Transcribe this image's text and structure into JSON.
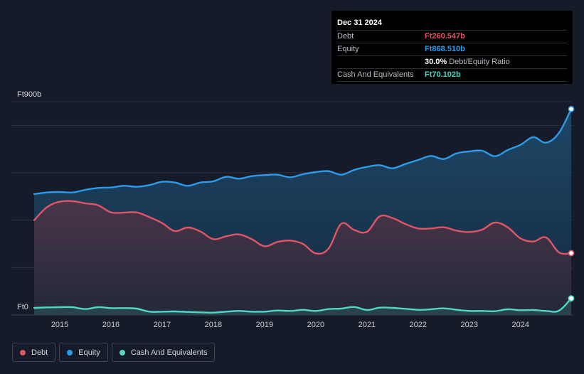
{
  "chart_data": {
    "type": "area",
    "y_top_label": "Ft900b",
    "y_bottom_label": "Ft0",
    "ylim": [
      0,
      900
    ],
    "xlim": [
      2014.5,
      2025.0
    ],
    "x_ticks": [
      "2015",
      "2016",
      "2017",
      "2018",
      "2019",
      "2020",
      "2021",
      "2022",
      "2023",
      "2024"
    ],
    "x_tick_values": [
      2015,
      2016,
      2017,
      2018,
      2019,
      2020,
      2021,
      2022,
      2023,
      2024
    ],
    "y_grid": [
      0,
      200,
      400,
      600,
      800,
      900
    ],
    "grid": true,
    "legend_position": "bottom-left",
    "series": [
      {
        "name": "Equity",
        "color": "#2d9be8",
        "points": [
          [
            2014.5,
            510
          ],
          [
            2014.75,
            517
          ],
          [
            2015.0,
            519
          ],
          [
            2015.25,
            517
          ],
          [
            2015.5,
            528
          ],
          [
            2015.75,
            536
          ],
          [
            2016.0,
            538
          ],
          [
            2016.25,
            545
          ],
          [
            2016.5,
            541
          ],
          [
            2016.75,
            548
          ],
          [
            2017.0,
            562
          ],
          [
            2017.25,
            559
          ],
          [
            2017.5,
            545
          ],
          [
            2017.75,
            559
          ],
          [
            2018.0,
            564
          ],
          [
            2018.25,
            583
          ],
          [
            2018.5,
            575
          ],
          [
            2018.75,
            586
          ],
          [
            2019.0,
            590
          ],
          [
            2019.25,
            592
          ],
          [
            2019.5,
            581
          ],
          [
            2019.75,
            594
          ],
          [
            2020.0,
            603
          ],
          [
            2020.25,
            607
          ],
          [
            2020.5,
            592
          ],
          [
            2020.75,
            612
          ],
          [
            2021.0,
            625
          ],
          [
            2021.25,
            632
          ],
          [
            2021.5,
            619
          ],
          [
            2021.75,
            637
          ],
          [
            2022.0,
            654
          ],
          [
            2022.25,
            671
          ],
          [
            2022.5,
            658
          ],
          [
            2022.75,
            682
          ],
          [
            2023.0,
            690
          ],
          [
            2023.25,
            693
          ],
          [
            2023.5,
            670
          ],
          [
            2023.75,
            696
          ],
          [
            2024.0,
            718
          ],
          [
            2024.25,
            750
          ],
          [
            2024.5,
            727
          ],
          [
            2024.75,
            768
          ],
          [
            2024.99,
            869
          ]
        ]
      },
      {
        "name": "Debt",
        "color": "#e05566",
        "points": [
          [
            2014.5,
            400
          ],
          [
            2014.75,
            455
          ],
          [
            2015.0,
            478
          ],
          [
            2015.25,
            480
          ],
          [
            2015.5,
            471
          ],
          [
            2015.75,
            463
          ],
          [
            2016.0,
            433
          ],
          [
            2016.25,
            432
          ],
          [
            2016.5,
            433
          ],
          [
            2016.75,
            413
          ],
          [
            2017.0,
            388
          ],
          [
            2017.25,
            354
          ],
          [
            2017.5,
            369
          ],
          [
            2017.75,
            352
          ],
          [
            2018.0,
            320
          ],
          [
            2018.25,
            332
          ],
          [
            2018.5,
            340
          ],
          [
            2018.75,
            320
          ],
          [
            2019.0,
            290
          ],
          [
            2019.25,
            308
          ],
          [
            2019.5,
            314
          ],
          [
            2019.75,
            300
          ],
          [
            2020.0,
            260
          ],
          [
            2020.25,
            280
          ],
          [
            2020.5,
            385
          ],
          [
            2020.75,
            359
          ],
          [
            2021.0,
            351
          ],
          [
            2021.25,
            416
          ],
          [
            2021.5,
            409
          ],
          [
            2021.75,
            384
          ],
          [
            2022.0,
            365
          ],
          [
            2022.25,
            365
          ],
          [
            2022.5,
            370
          ],
          [
            2022.75,
            356
          ],
          [
            2023.0,
            350
          ],
          [
            2023.25,
            360
          ],
          [
            2023.5,
            390
          ],
          [
            2023.75,
            370
          ],
          [
            2024.0,
            323
          ],
          [
            2024.25,
            310
          ],
          [
            2024.5,
            327
          ],
          [
            2024.75,
            264
          ],
          [
            2024.99,
            261
          ]
        ]
      },
      {
        "name": "Cash And Equivalents",
        "color": "#4fd8c4",
        "points": [
          [
            2014.5,
            30
          ],
          [
            2014.75,
            32
          ],
          [
            2015.0,
            33
          ],
          [
            2015.25,
            33
          ],
          [
            2015.5,
            25
          ],
          [
            2015.75,
            33
          ],
          [
            2016.0,
            29
          ],
          [
            2016.25,
            29
          ],
          [
            2016.5,
            27
          ],
          [
            2016.75,
            14
          ],
          [
            2017.0,
            14
          ],
          [
            2017.25,
            15
          ],
          [
            2017.5,
            13
          ],
          [
            2017.75,
            11
          ],
          [
            2018.0,
            10
          ],
          [
            2018.25,
            14
          ],
          [
            2018.5,
            17
          ],
          [
            2018.75,
            14
          ],
          [
            2019.0,
            14
          ],
          [
            2019.25,
            19
          ],
          [
            2019.5,
            17
          ],
          [
            2019.75,
            22
          ],
          [
            2020.0,
            17
          ],
          [
            2020.25,
            25
          ],
          [
            2020.5,
            27
          ],
          [
            2020.75,
            34
          ],
          [
            2021.0,
            21
          ],
          [
            2021.25,
            31
          ],
          [
            2021.5,
            30
          ],
          [
            2021.75,
            26
          ],
          [
            2022.0,
            22
          ],
          [
            2022.25,
            24
          ],
          [
            2022.5,
            28
          ],
          [
            2022.75,
            22
          ],
          [
            2023.0,
            17
          ],
          [
            2023.25,
            17
          ],
          [
            2023.5,
            16
          ],
          [
            2023.75,
            24
          ],
          [
            2024.0,
            20
          ],
          [
            2024.25,
            21
          ],
          [
            2024.5,
            17
          ],
          [
            2024.75,
            18
          ],
          [
            2024.99,
            70
          ]
        ]
      }
    ]
  },
  "tooltip": {
    "date": "Dec 31 2024",
    "debt_label": "Debt",
    "debt_value": "Ft260.547b",
    "equity_label": "Equity",
    "equity_value": "Ft868.510b",
    "ratio_value": "30.0%",
    "ratio_label": "Debt/Equity Ratio",
    "cash_label": "Cash And Equivalents",
    "cash_value": "Ft70.102b"
  },
  "legend": {
    "debt": "Debt",
    "equity": "Equity",
    "cash": "Cash And Equivalents"
  },
  "colors": {
    "debt": "#e05566",
    "equity": "#2d9be8",
    "cash": "#4fd8c4"
  }
}
